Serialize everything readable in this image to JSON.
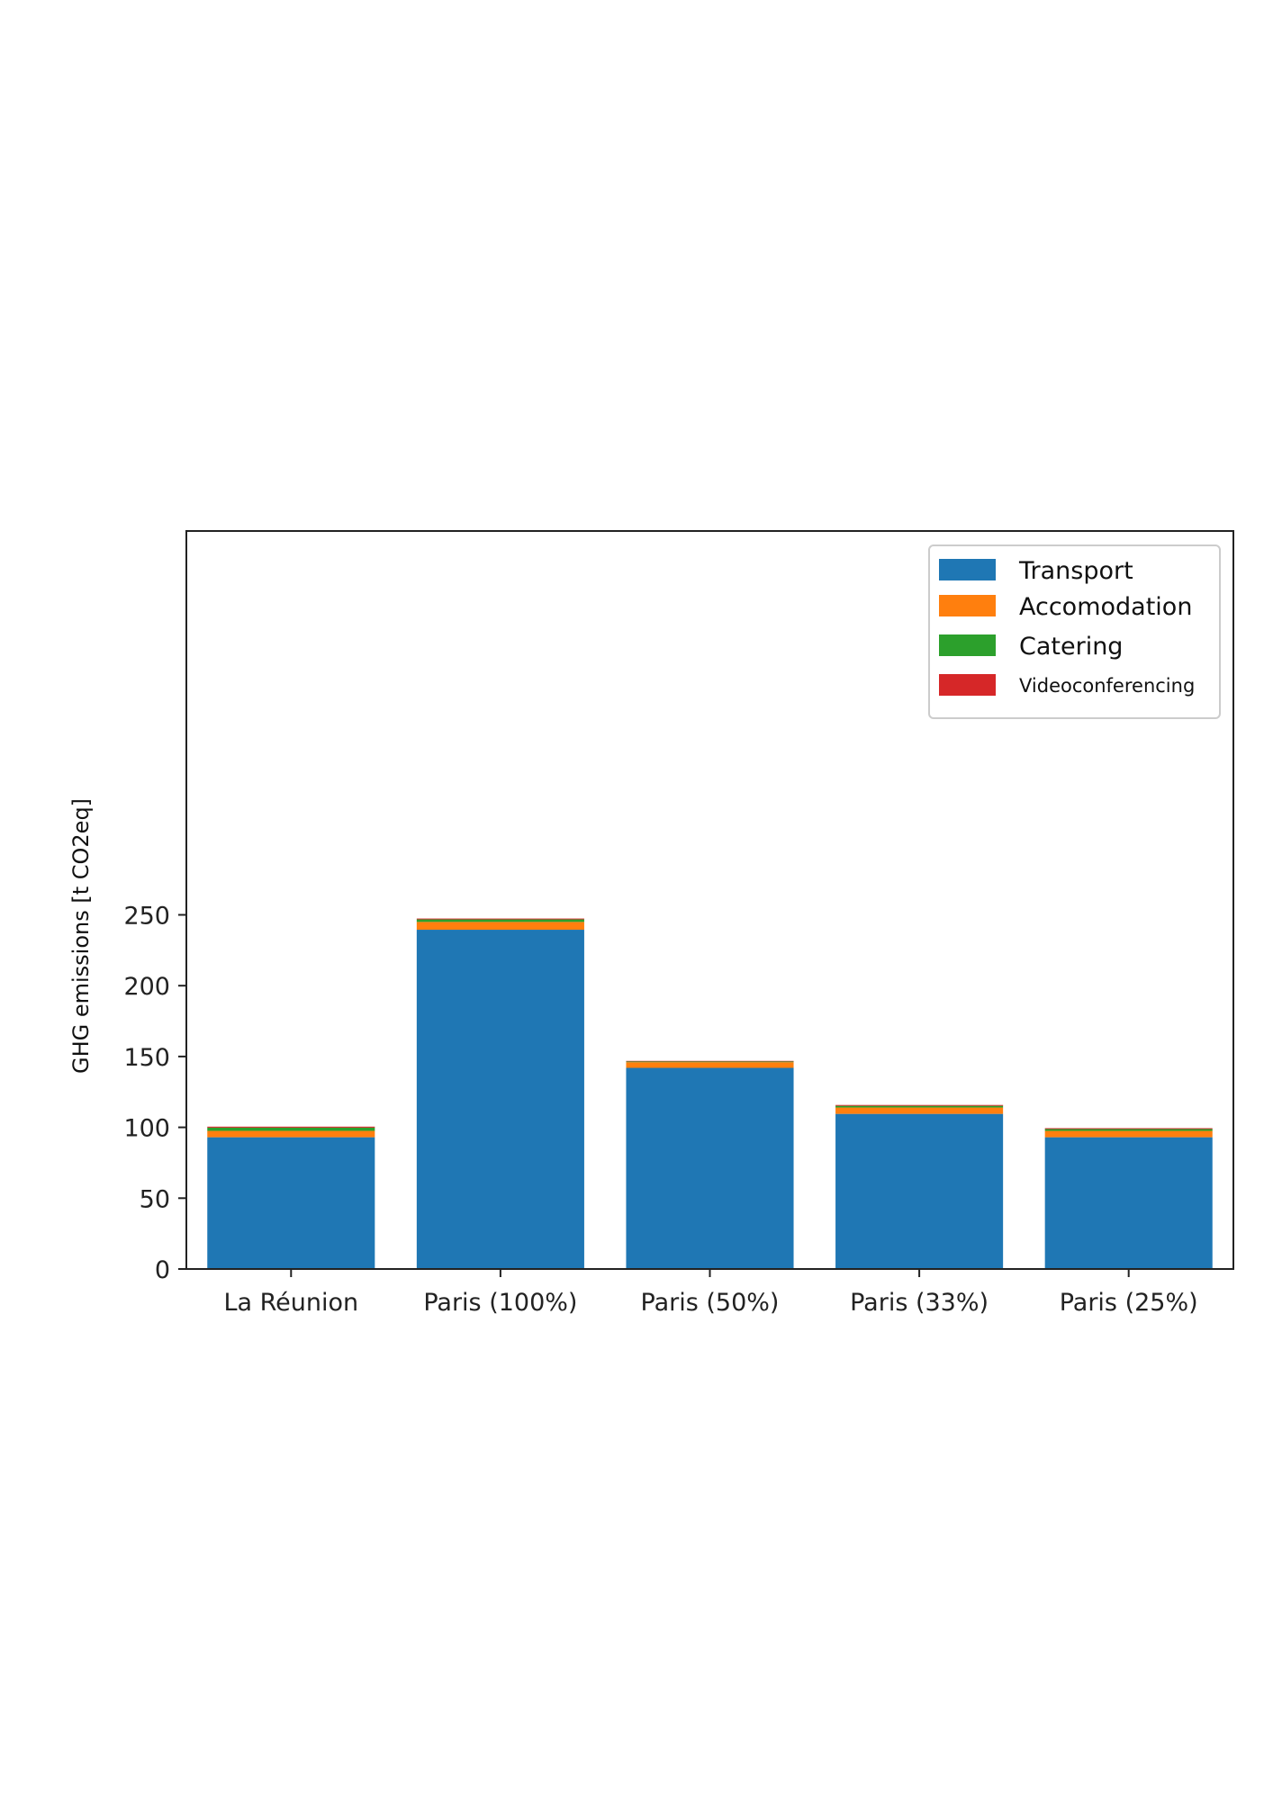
{
  "chart_data": {
    "type": "bar",
    "stacked": true,
    "categories": [
      "La Réunion",
      "Paris (100%)",
      "Paris (50%)",
      "Paris (33%)",
      "Paris (25%)"
    ],
    "series": [
      {
        "name": "Transport",
        "color": "#1f77b4",
        "values": [
          93,
          239.5,
          142,
          109.5,
          93
        ]
      },
      {
        "name": "Accomodation",
        "color": "#ff7f0e",
        "values": [
          4.5,
          5.5,
          4,
          4.5,
          4.5
        ]
      },
      {
        "name": "Catering",
        "color": "#2ca02c",
        "values": [
          2.3,
          1.8,
          0.5,
          1.2,
          1.3
        ]
      },
      {
        "name": "Videoconferencing",
        "color": "#d62728",
        "values": [
          0.7,
          0.6,
          0.4,
          0.6,
          0.6
        ]
      }
    ],
    "xlabel": "",
    "ylabel": "GHG emissions  [t CO2eq]",
    "ylim": [
      0,
      260
    ],
    "yticks": [
      0,
      50,
      100,
      150,
      200,
      250
    ],
    "grid": false,
    "legend_position": "top-right"
  }
}
